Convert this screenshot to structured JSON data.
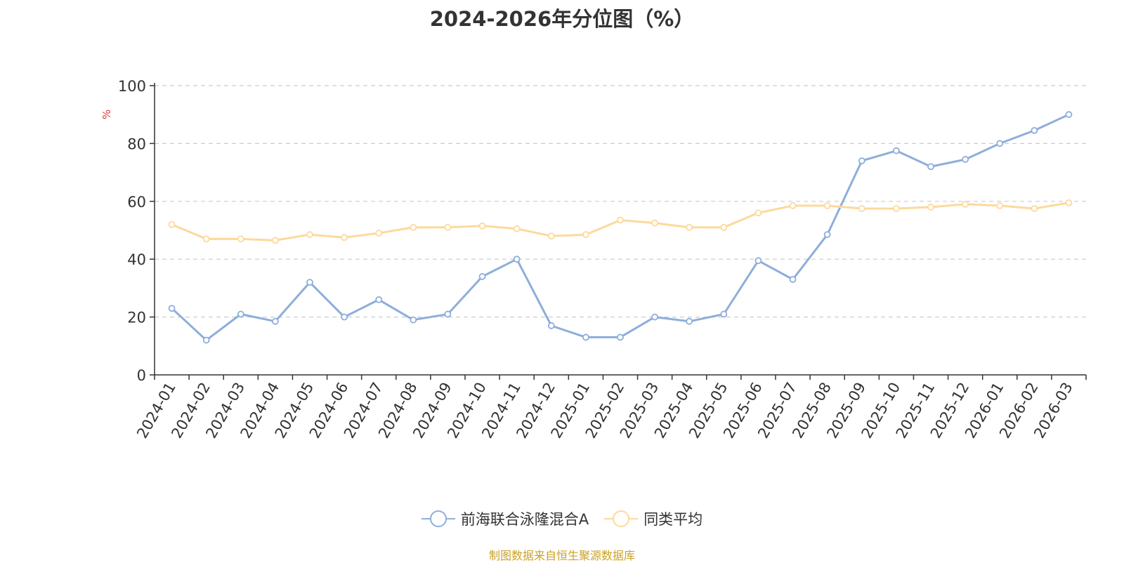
{
  "chart_data": {
    "type": "line",
    "title": "2024-2026年分位图（%）",
    "ylabel": "%",
    "ylim": [
      0,
      100
    ],
    "yticks": [
      0,
      20,
      40,
      60,
      80,
      100
    ],
    "grid": true,
    "legend_position": "bottom",
    "categories": [
      "2024-01",
      "2024-02",
      "2024-03",
      "2024-04",
      "2024-05",
      "2024-06",
      "2024-07",
      "2024-08",
      "2024-09",
      "2024-10",
      "2024-11",
      "2024-12",
      "2025-01",
      "2025-02",
      "2025-03",
      "2025-04",
      "2025-05",
      "2025-06",
      "2025-07",
      "2025-08",
      "2025-09",
      "2025-10",
      "2025-11",
      "2025-12",
      "2026-01",
      "2026-02",
      "2026-03"
    ],
    "series": [
      {
        "name": "前海联合泳隆混合A",
        "color": "#8eaedb",
        "values": [
          23,
          12,
          21,
          18.5,
          32,
          20,
          26,
          19,
          21,
          34,
          40,
          17,
          13,
          13,
          20,
          18.5,
          21,
          39.5,
          33,
          48.5,
          74,
          77.5,
          72,
          74.5,
          80,
          84.5,
          90
        ]
      },
      {
        "name": "同类平均",
        "color": "#fdd99b",
        "values": [
          52,
          47,
          47,
          46.5,
          48.5,
          47.5,
          49,
          51,
          51,
          51.5,
          50.5,
          48,
          48.5,
          53.5,
          52.5,
          51,
          51,
          56,
          58.5,
          58.5,
          57.5,
          57.5,
          58,
          59,
          58.5,
          57.5,
          59.5
        ]
      }
    ],
    "source": "制图数据来自恒生聚源数据库"
  }
}
